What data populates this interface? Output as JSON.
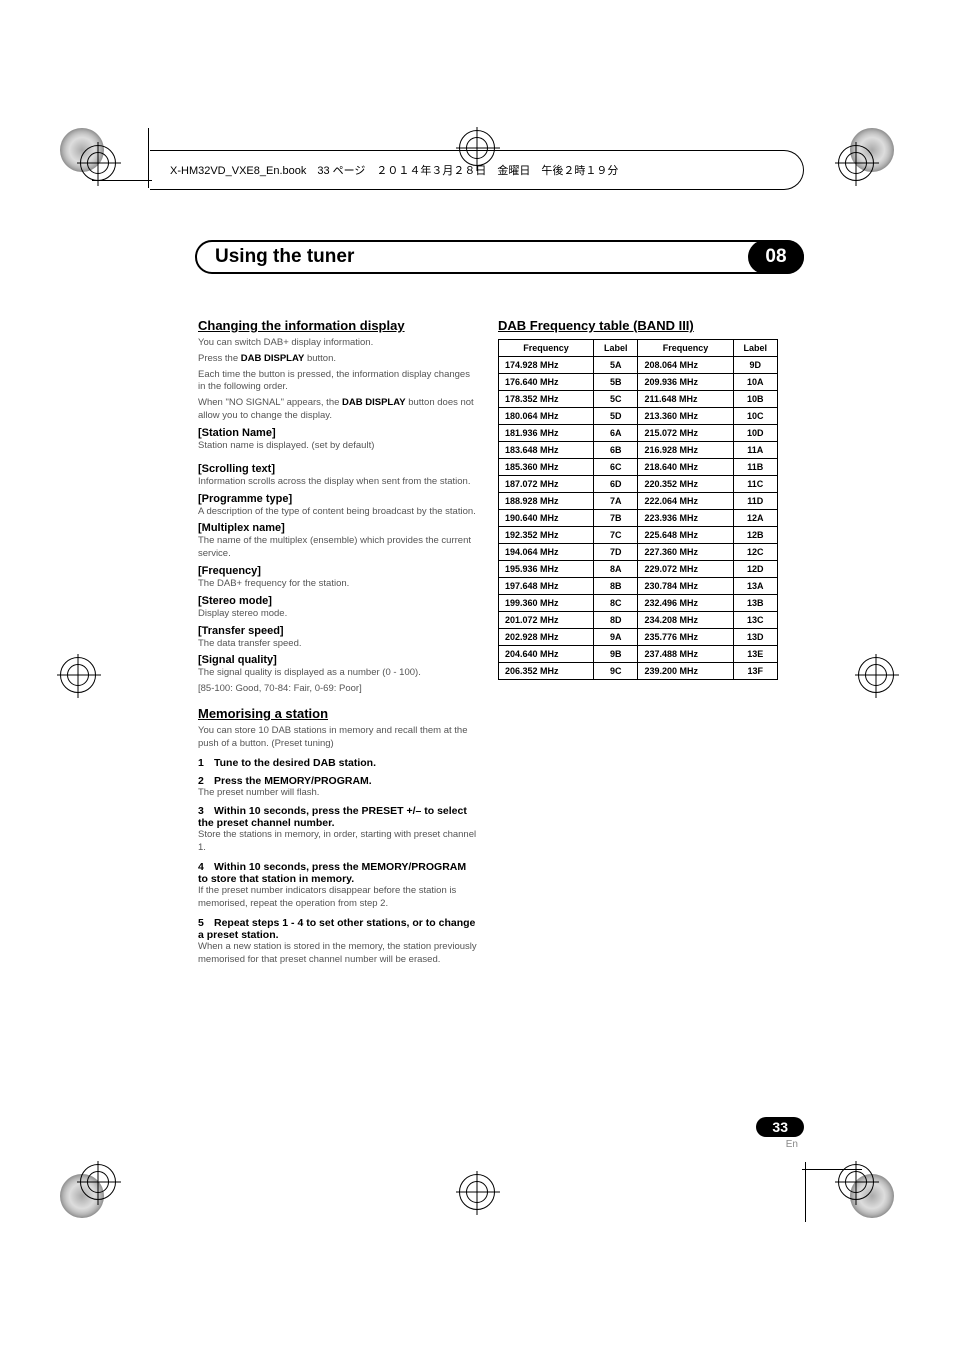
{
  "bookinfo": "X-HM32VD_VXE8_En.book　33 ページ　２０１４年３月２８日　金曜日　午後２時１９分",
  "chapter": {
    "title": "Using the tuner",
    "number": "08"
  },
  "left": {
    "h2_changing": "Changing the information display",
    "p1": "You can switch DAB+ display information.",
    "p2a": "Press the ",
    "p2b": "DAB DISPLAY",
    "p2c": " button.",
    "p3": "Each time the button is pressed, the information display changes in the following order.",
    "p4a": "When \"NO SIGNAL\" appears, the ",
    "p4b": "DAB DISPLAY",
    "p4c": " button does not allow you to change the display.",
    "s_station": "[Station Name]",
    "s_station_b": "Station name is displayed. (set by default)",
    "s_scroll": "[Scrolling text]",
    "s_scroll_b": "Information scrolls across the display when sent from the station.",
    "s_prog": "[Programme type]",
    "s_prog_b": "A description of the type of content being broadcast by the station.",
    "s_mux": "[Multiplex name]",
    "s_mux_b": "The name of the multiplex (ensemble) which provides the current service.",
    "s_freq": "[Frequency]",
    "s_freq_b": "The DAB+ frequency for the station.",
    "s_stereo": "[Stereo mode]",
    "s_stereo_b": "Display stereo mode.",
    "s_trans": "[Transfer speed]",
    "s_trans_b": "The data transfer speed.",
    "s_sig": "[Signal quality]",
    "s_sig_b1": "The signal quality is displayed as a number (0 - 100).",
    "s_sig_b2": "[85-100: Good, 70-84: Fair, 0-69: Poor]",
    "h2_mem": "Memorising a station",
    "mem_p1": "You can store 10 DAB stations in memory and recall them at the push of a button. (Preset tuning)",
    "step1": "Tune to the desired DAB station.",
    "step2": "Press the MEMORY/PROGRAM.",
    "step2_b": "The preset number will flash.",
    "step3": "Within 10 seconds, press the PRESET +/– to select the preset channel number.",
    "step3_b": "Store the stations in memory, in order, starting with preset channel 1.",
    "step4": "Within 10 seconds, press the MEMORY/PROGRAM to store that station in memory.",
    "step4_b": "If the preset number indicators disappear before the station is memorised, repeat the operation from step 2.",
    "step5": "Repeat steps 1 - 4 to set other stations, or to change a preset station.",
    "step5_b": "When a new station is stored in the memory, the station previously memorised for that preset channel number will be erased."
  },
  "right": {
    "h2": "DAB Frequency table (BAND III)",
    "th_freq": "Frequency",
    "th_label": "Label",
    "rows": [
      [
        "174.928 MHz",
        "5A",
        "208.064 MHz",
        "9D"
      ],
      [
        "176.640 MHz",
        "5B",
        "209.936 MHz",
        "10A"
      ],
      [
        "178.352 MHz",
        "5C",
        "211.648 MHz",
        "10B"
      ],
      [
        "180.064 MHz",
        "5D",
        "213.360 MHz",
        "10C"
      ],
      [
        "181.936 MHz",
        "6A",
        "215.072 MHz",
        "10D"
      ],
      [
        "183.648 MHz",
        "6B",
        "216.928 MHz",
        "11A"
      ],
      [
        "185.360 MHz",
        "6C",
        "218.640 MHz",
        "11B"
      ],
      [
        "187.072 MHz",
        "6D",
        "220.352 MHz",
        "11C"
      ],
      [
        "188.928 MHz",
        "7A",
        "222.064 MHz",
        "11D"
      ],
      [
        "190.640 MHz",
        "7B",
        "223.936 MHz",
        "12A"
      ],
      [
        "192.352 MHz",
        "7C",
        "225.648 MHz",
        "12B"
      ],
      [
        "194.064 MHz",
        "7D",
        "227.360 MHz",
        "12C"
      ],
      [
        "195.936 MHz",
        "8A",
        "229.072 MHz",
        "12D"
      ],
      [
        "197.648 MHz",
        "8B",
        "230.784 MHz",
        "13A"
      ],
      [
        "199.360 MHz",
        "8C",
        "232.496 MHz",
        "13B"
      ],
      [
        "201.072 MHz",
        "8D",
        "234.208 MHz",
        "13C"
      ],
      [
        "202.928 MHz",
        "9A",
        "235.776 MHz",
        "13D"
      ],
      [
        "204.640 MHz",
        "9B",
        "237.488 MHz",
        "13E"
      ],
      [
        "206.352 MHz",
        "9C",
        "239.200 MHz",
        "13F"
      ]
    ]
  },
  "pagenum": "33",
  "lang": "En"
}
